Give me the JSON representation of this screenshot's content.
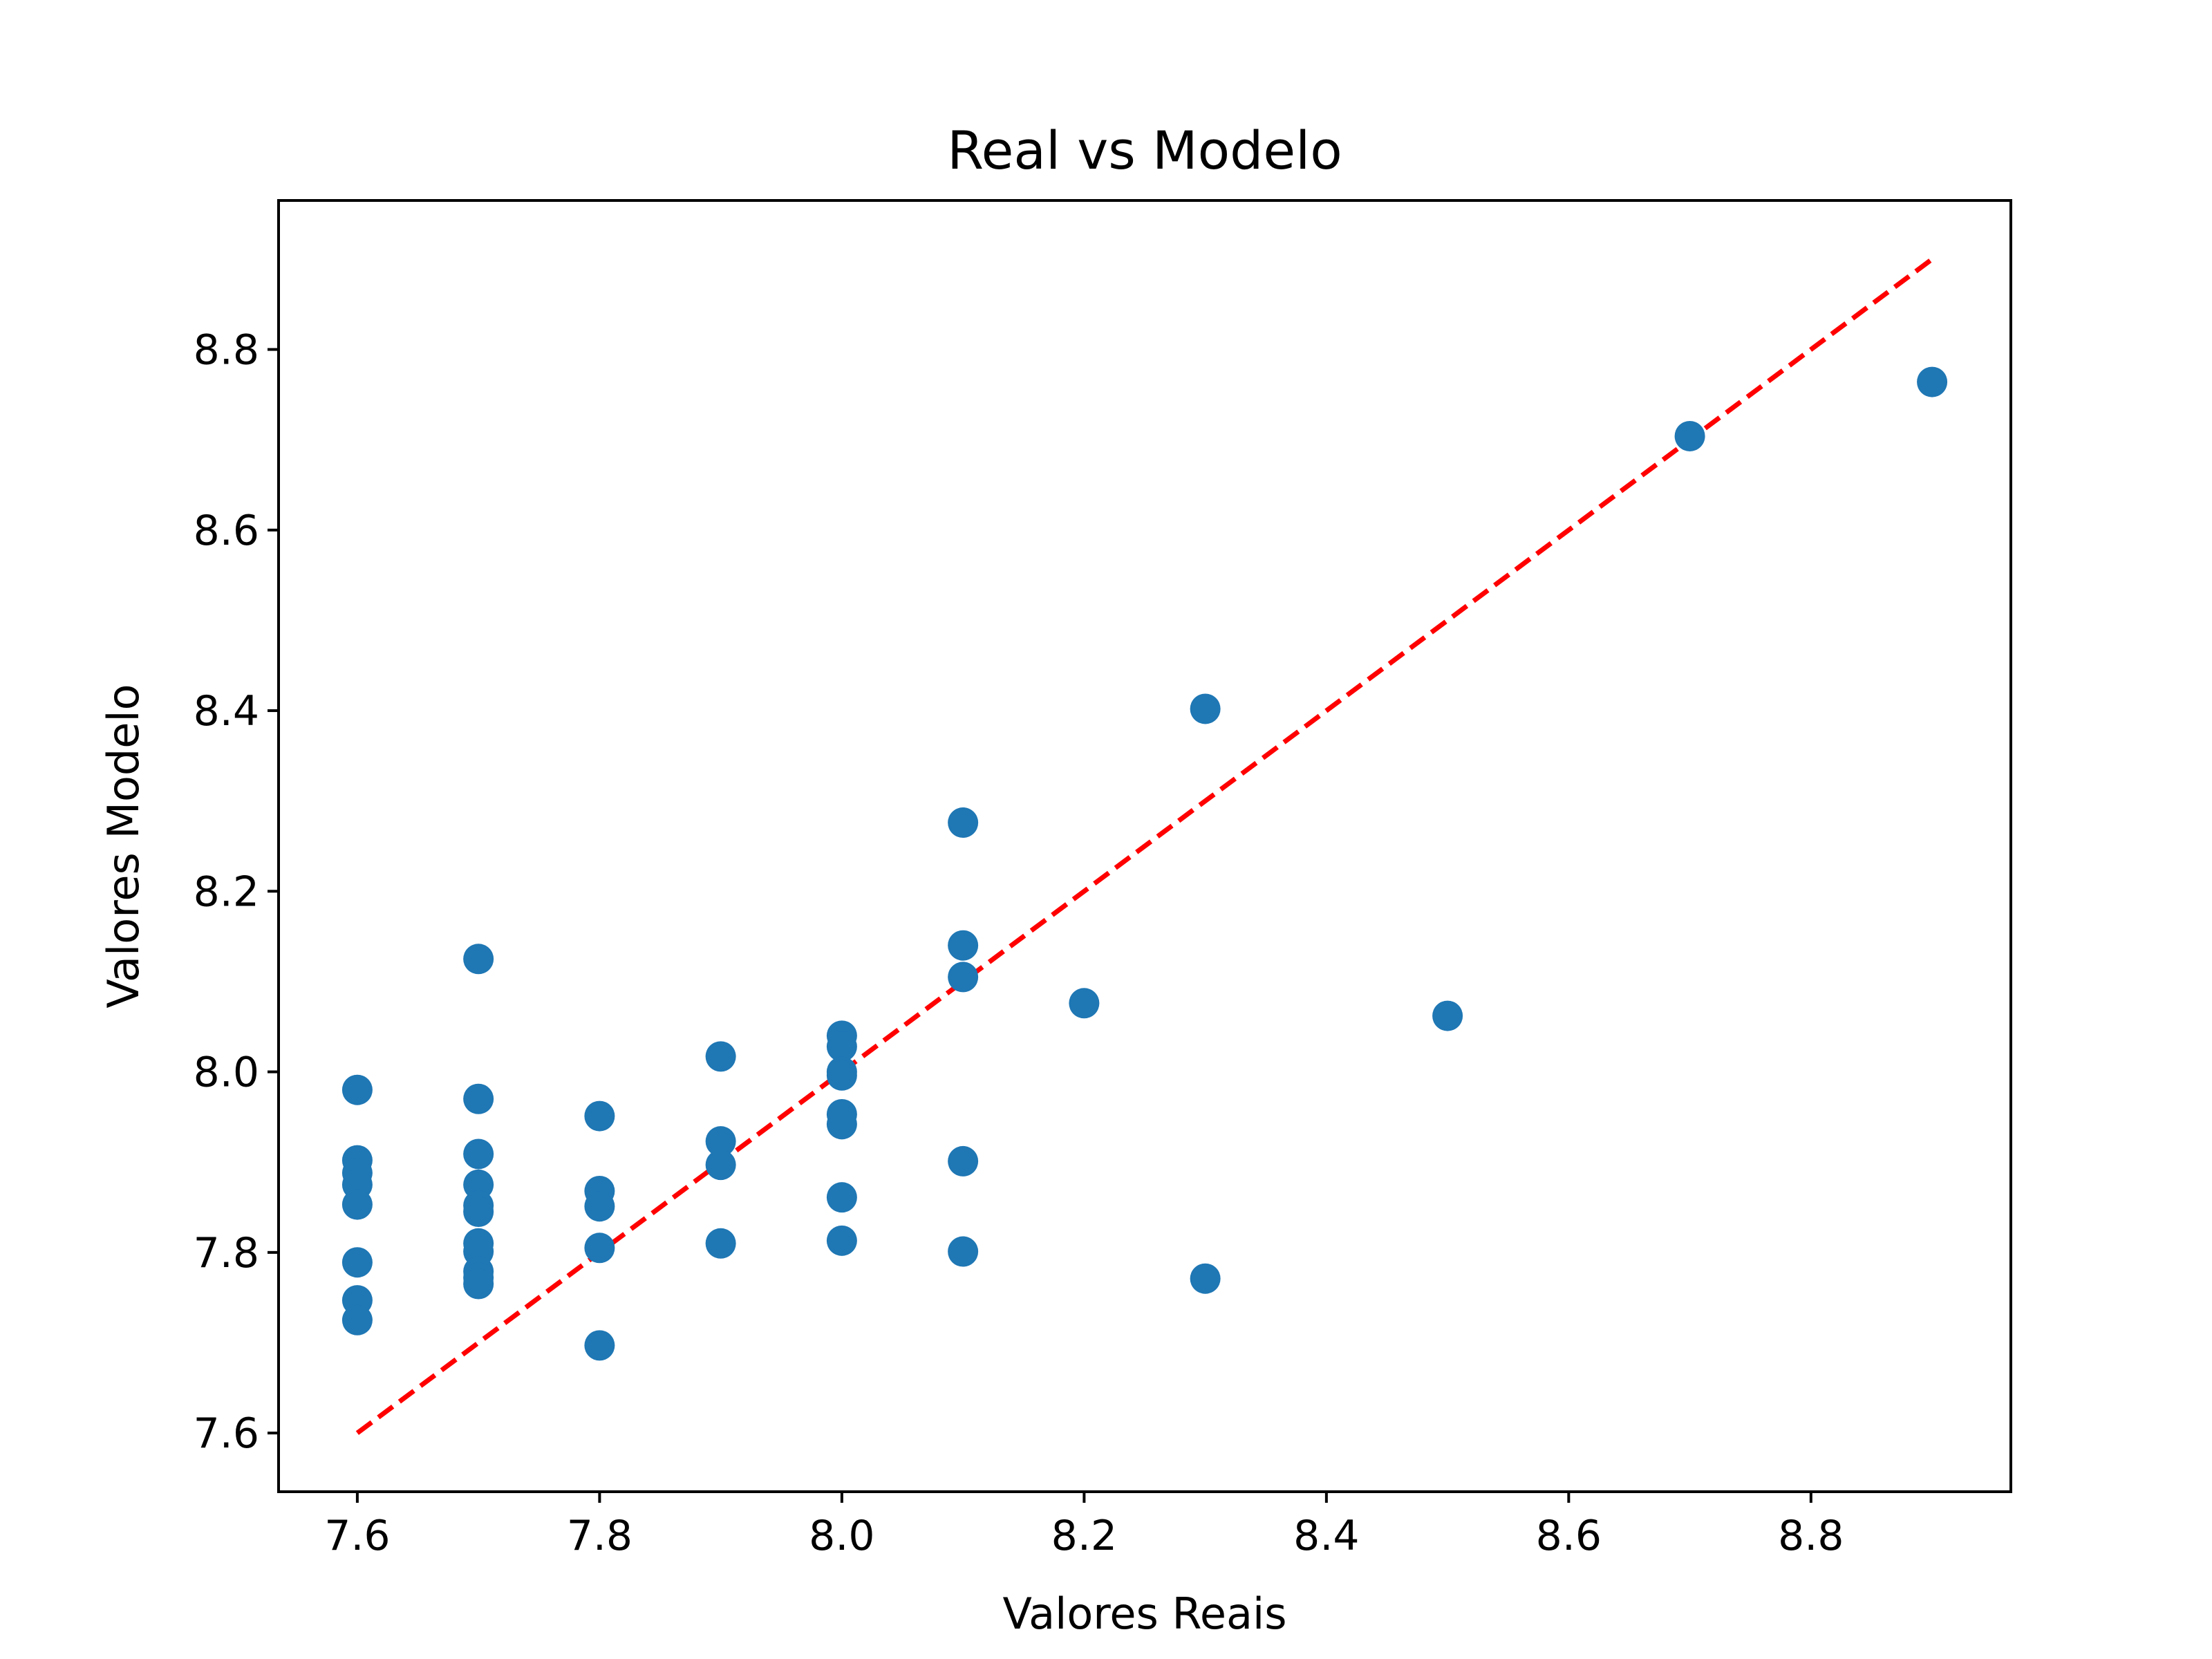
{
  "chart_data": {
    "type": "scatter",
    "title": "Real vs Modelo",
    "xlabel": "Valores Reais",
    "ylabel": "Valores Modelo",
    "xlim": [
      7.535,
      8.965
    ],
    "ylim": [
      7.535,
      8.965
    ],
    "xticks": [
      "7.6",
      "7.8",
      "8.0",
      "8.2",
      "8.4",
      "8.6",
      "8.8"
    ],
    "yticks": [
      "7.6",
      "7.8",
      "8.0",
      "8.2",
      "8.4",
      "8.6",
      "8.8"
    ],
    "grid": false,
    "colors": {
      "points": "#1f77b4",
      "reference_line": "#ff0000"
    },
    "reference_line": {
      "style": "dashed",
      "from": [
        7.6,
        7.6
      ],
      "to": [
        8.9,
        8.9
      ]
    },
    "points": [
      [
        7.6,
        7.98
      ],
      [
        7.6,
        7.902
      ],
      [
        7.6,
        7.888
      ],
      [
        7.6,
        7.875
      ],
      [
        7.6,
        7.853
      ],
      [
        7.6,
        7.789
      ],
      [
        7.6,
        7.747
      ],
      [
        7.6,
        7.725
      ],
      [
        7.7,
        8.125
      ],
      [
        7.7,
        7.97
      ],
      [
        7.7,
        7.909
      ],
      [
        7.7,
        7.875
      ],
      [
        7.7,
        7.852
      ],
      [
        7.7,
        7.845
      ],
      [
        7.7,
        7.81
      ],
      [
        7.7,
        7.801
      ],
      [
        7.7,
        7.779
      ],
      [
        7.7,
        7.772
      ],
      [
        7.7,
        7.765
      ],
      [
        7.8,
        7.951
      ],
      [
        7.8,
        7.868
      ],
      [
        7.8,
        7.851
      ],
      [
        7.8,
        7.805
      ],
      [
        7.8,
        7.697
      ],
      [
        7.9,
        8.017
      ],
      [
        7.9,
        7.923
      ],
      [
        7.9,
        7.897
      ],
      [
        7.9,
        7.81
      ],
      [
        8.0,
        8.04
      ],
      [
        8.0,
        8.028
      ],
      [
        8.0,
        8.0
      ],
      [
        8.0,
        7.996
      ],
      [
        8.0,
        7.953
      ],
      [
        8.0,
        7.942
      ],
      [
        8.0,
        7.861
      ],
      [
        8.0,
        7.813
      ],
      [
        8.1,
        8.276
      ],
      [
        8.1,
        8.14
      ],
      [
        8.1,
        8.105
      ],
      [
        8.1,
        7.901
      ],
      [
        8.1,
        7.801
      ],
      [
        8.2,
        8.076
      ],
      [
        8.3,
        8.402
      ],
      [
        8.3,
        7.771
      ],
      [
        8.5,
        8.062
      ],
      [
        8.7,
        8.704
      ],
      [
        8.9,
        8.764
      ]
    ]
  }
}
